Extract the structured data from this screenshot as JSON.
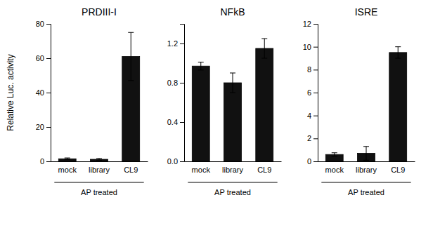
{
  "chart_data": [
    {
      "type": "bar",
      "title": "PRDIII-I",
      "ylabel": "Relative Luc. activity",
      "categories": [
        "mock",
        "library",
        "CL9"
      ],
      "values": [
        1.5,
        1.2,
        61.0
      ],
      "errors": [
        0.5,
        0.5,
        14.0
      ],
      "color": "#111111",
      "ylim": [
        0,
        80
      ],
      "yticks": [
        0,
        20,
        40,
        60,
        80
      ],
      "annotations": [
        "AP treated"
      ]
    },
    {
      "type": "bar",
      "title": "NFkB",
      "categories": [
        "mock",
        "library",
        "CL9"
      ],
      "values": [
        0.97,
        0.8,
        1.15
      ],
      "errors": [
        0.04,
        0.1,
        0.1
      ],
      "color": "#111111",
      "ylim": [
        0,
        1.4
      ],
      "yticks": [
        {
          "value": 0,
          "label": "0.0"
        },
        0.4,
        0.8,
        1.2
      ],
      "annotations": [
        "AP treated"
      ]
    },
    {
      "type": "bar",
      "title": "ISRE",
      "categories": [
        "mock",
        "library",
        "CL9"
      ],
      "values": [
        0.6,
        0.7,
        9.5
      ],
      "errors": [
        0.15,
        0.6,
        0.5
      ],
      "color": "#111111",
      "ylim": [
        0,
        12
      ],
      "yticks": [
        0,
        2,
        4,
        6,
        8,
        10,
        12
      ],
      "annotations": [
        "AP treated"
      ]
    }
  ]
}
